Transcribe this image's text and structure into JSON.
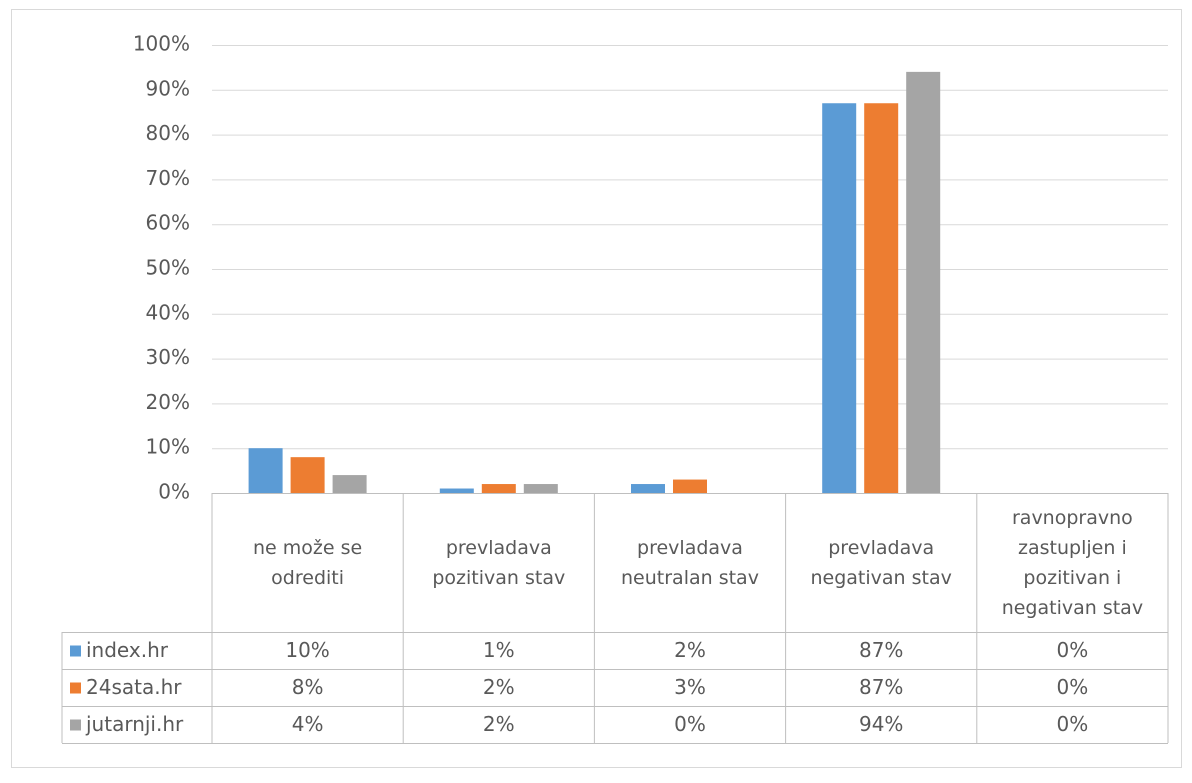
{
  "chart_data": {
    "type": "bar",
    "categories": [
      "ne može se odrediti",
      "prevladava pozitivan stav",
      "prevladava neutralan stav",
      "prevladava negativan stav",
      "ravnopravno zastupljen i pozitivan i negativan stav"
    ],
    "series": [
      {
        "name": "index.hr",
        "color": "#5b9bd5",
        "values": [
          10,
          1,
          2,
          87,
          0
        ],
        "value_labels": [
          "10%",
          "1%",
          "2%",
          "87%",
          "0%"
        ]
      },
      {
        "name": "24sata.hr",
        "color": "#ed7d31",
        "values": [
          8,
          2,
          3,
          87,
          0
        ],
        "value_labels": [
          "8%",
          "2%",
          "3%",
          "87%",
          "0%"
        ]
      },
      {
        "name": "jutarnji.hr",
        "color": "#a5a5a5",
        "values": [
          4,
          2,
          0,
          94,
          0
        ],
        "value_labels": [
          "4%",
          "2%",
          "0%",
          "94%",
          "0%"
        ]
      }
    ],
    "ylim": [
      0,
      100
    ],
    "yticks": [
      {
        "value": 0,
        "label": "0%"
      },
      {
        "value": 10,
        "label": "10%"
      },
      {
        "value": 20,
        "label": "20%"
      },
      {
        "value": 30,
        "label": "30%"
      },
      {
        "value": 40,
        "label": "40%"
      },
      {
        "value": 50,
        "label": "50%"
      },
      {
        "value": 60,
        "label": "60%"
      },
      {
        "value": 70,
        "label": "70%"
      },
      {
        "value": 80,
        "label": "80%"
      },
      {
        "value": 90,
        "label": "90%"
      },
      {
        "value": 100,
        "label": "100%"
      }
    ],
    "grid": true,
    "data_table": true
  }
}
